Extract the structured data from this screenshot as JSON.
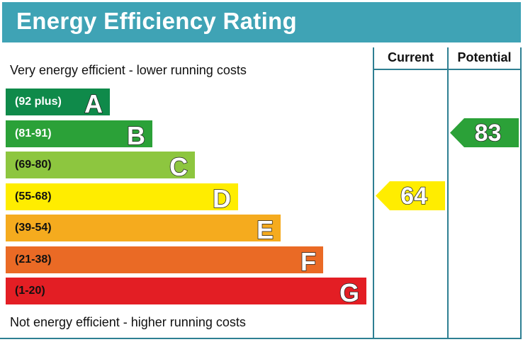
{
  "title": "Energy Efficiency Rating",
  "columns": {
    "current": "Current",
    "potential": "Potential"
  },
  "top_note": "Very energy efficient - lower running costs",
  "bottom_note": "Not energy efficient - higher running costs",
  "chart_data": {
    "type": "bar",
    "title": "Energy Efficiency Rating",
    "bands": [
      {
        "range": "(92 plus)",
        "letter": "A",
        "color": "#0f8a4a"
      },
      {
        "range": "(81-91)",
        "letter": "B",
        "color": "#2ba138"
      },
      {
        "range": "(69-80)",
        "letter": "C",
        "color": "#8dc63f"
      },
      {
        "range": "(55-68)",
        "letter": "D",
        "color": "#ffed00"
      },
      {
        "range": "(39-54)",
        "letter": "E",
        "color": "#f5ab1e"
      },
      {
        "range": "(21-38)",
        "letter": "F",
        "color": "#ea6a25"
      },
      {
        "range": "(1-20)",
        "letter": "G",
        "color": "#e31e24"
      }
    ],
    "current": {
      "value": "64",
      "band": "D",
      "color": "#ffed00"
    },
    "potential": {
      "value": "83",
      "band": "B",
      "color": "#2ba138"
    }
  }
}
